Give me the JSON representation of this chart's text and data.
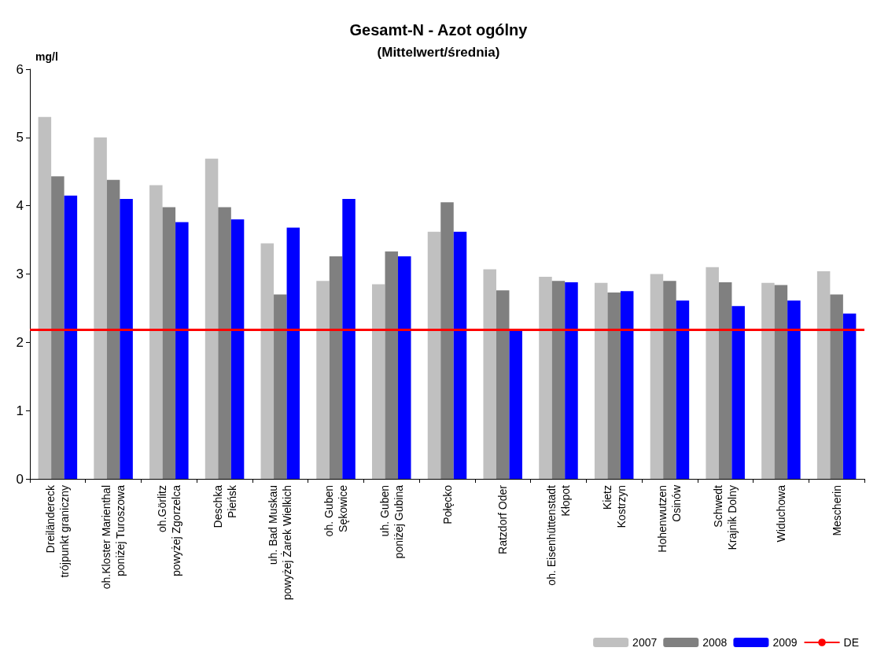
{
  "chart_data": {
    "type": "bar",
    "title": "Gesamt-N - Azot ogólny",
    "subtitle": "(Mittelwert/średnia)",
    "ylabel": "mg/l",
    "categories": [
      "Dreiländereck\ntrójpunkt graniczny",
      "oh.Kloster Marienthal\nponiżej Turoszowa",
      "oh.Görlitz\npowyżej Zgorzelca",
      "Deschka\nPieńsk",
      "uh. Bad Muskau\npowyżej Żarek Wielkich",
      "oh. Guben\nSękowice",
      "uh. Guben\nponiżej Gubina",
      "Połęcko",
      "Ratzdorf Oder",
      "oh. Eisenhüttenstadt\nKłopot",
      "Kietz\nKostrzyn",
      "Hohenwutzen\nOsinów",
      "Schwedt\nKrajnik Dolny",
      "Widuchowa",
      "Mescherin"
    ],
    "series": [
      {
        "name": "2007",
        "color": "#c0c0c0",
        "values": [
          5.3,
          5.0,
          4.3,
          4.69,
          3.45,
          2.9,
          2.85,
          3.62,
          3.07,
          2.96,
          2.87,
          3.0,
          3.1,
          2.87,
          3.04
        ]
      },
      {
        "name": "2008",
        "color": "#808080",
        "values": [
          4.43,
          4.38,
          3.98,
          3.98,
          2.7,
          3.26,
          3.33,
          4.05,
          2.76,
          2.9,
          2.73,
          2.9,
          2.88,
          2.84,
          2.7
        ]
      },
      {
        "name": "2009",
        "color": "#0000ff",
        "values": [
          4.15,
          4.1,
          3.76,
          3.8,
          3.68,
          4.1,
          3.26,
          3.62,
          2.19,
          2.88,
          2.75,
          2.61,
          2.53,
          2.61,
          2.42
        ]
      }
    ],
    "ref_lines": [
      {
        "axis": "y",
        "value": 2.18,
        "label": "DE",
        "color": "#ff0000"
      }
    ],
    "ylim": [
      0,
      6
    ],
    "yticks": [
      0,
      1,
      2,
      3,
      4,
      5,
      6
    ],
    "grid": false,
    "legend": "bottom right"
  }
}
